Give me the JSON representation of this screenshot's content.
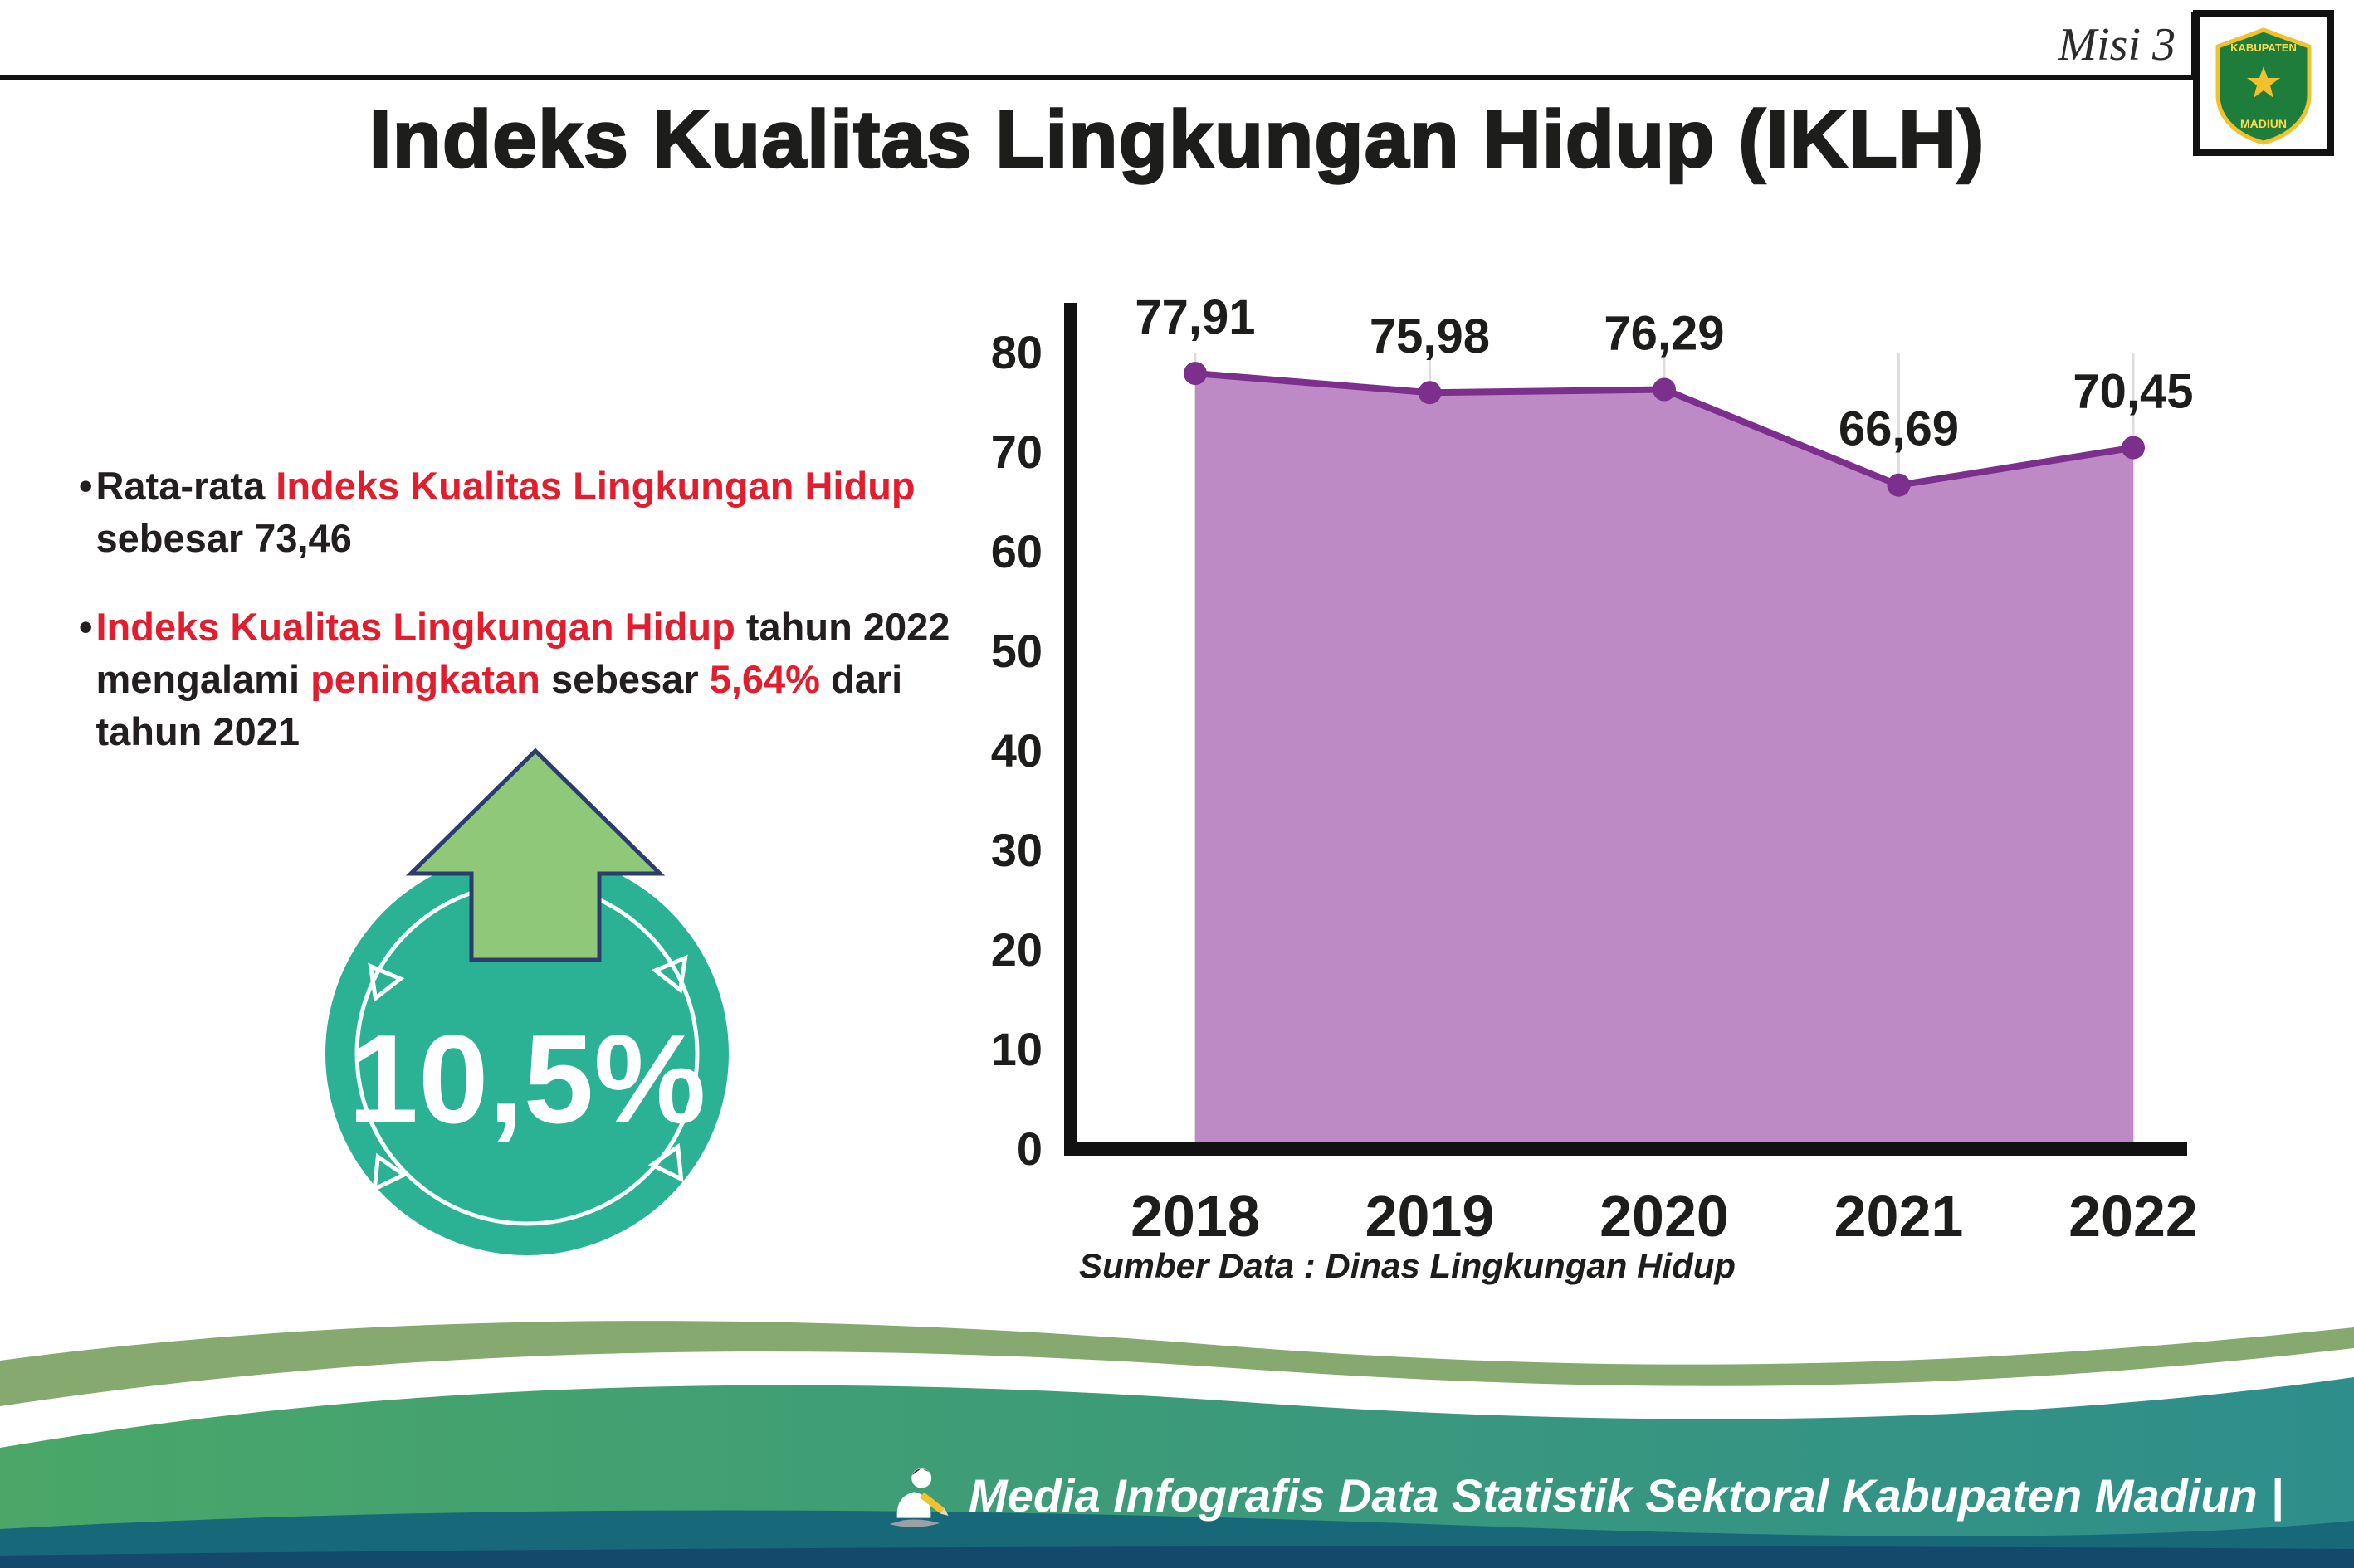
{
  "header": {
    "misi": "Misi 3",
    "title": "Indeks Kualitas Lingkungan Hidup (IKLH)"
  },
  "logo": {
    "line1": "KABUPATEN",
    "line2": "MADIUN"
  },
  "bullet_marker": "•",
  "bullets": [
    {
      "segments": [
        {
          "t": "Rata-rata "
        },
        {
          "t": "Indeks Kualitas Lingkungan Hidup",
          "red": true
        },
        {
          "t": " sebesar 73,46"
        }
      ]
    },
    {
      "segments": [
        {
          "t": "Indeks Kualitas Lingkungan Hidup",
          "red": true
        },
        {
          "t": " tahun 2022 mengalami "
        },
        {
          "t": "peningkatan",
          "red": true
        },
        {
          "t": " sebesar "
        },
        {
          "t": "5,64%",
          "red": true
        },
        {
          "t": " dari tahun 2021"
        }
      ]
    }
  ],
  "badge": {
    "value": "10,5%"
  },
  "chart_data": {
    "type": "area",
    "title": "",
    "categories": [
      "2018",
      "2019",
      "2020",
      "2021",
      "2022"
    ],
    "series": [
      {
        "name": "IKLH",
        "values": [
          77.91,
          75.98,
          76.29,
          66.69,
          70.45
        ]
      }
    ],
    "value_labels": [
      "77,91",
      "75,98",
      "76,29",
      "66,69",
      "70,45"
    ],
    "ylim": [
      0,
      80
    ],
    "yticks": [
      0,
      10,
      20,
      30,
      40,
      50,
      60,
      70,
      80
    ],
    "grid": "vertical-light",
    "legend": "none",
    "area_color": "#bd8ac6",
    "line_color": "#7c2f8d",
    "source": "Sumber Data : Dinas Lingkungan Hidup"
  },
  "footer": {
    "caption": "Media Infografis Data Statistik Sektoral Kabupaten Madiun |"
  },
  "colors": {
    "accent_red": "#e11d2e",
    "badge_teal": "#2bb194",
    "arrow_green": "#8ec878",
    "footer_green_left": "#4aa768",
    "footer_green_right": "#2e8e8b"
  }
}
